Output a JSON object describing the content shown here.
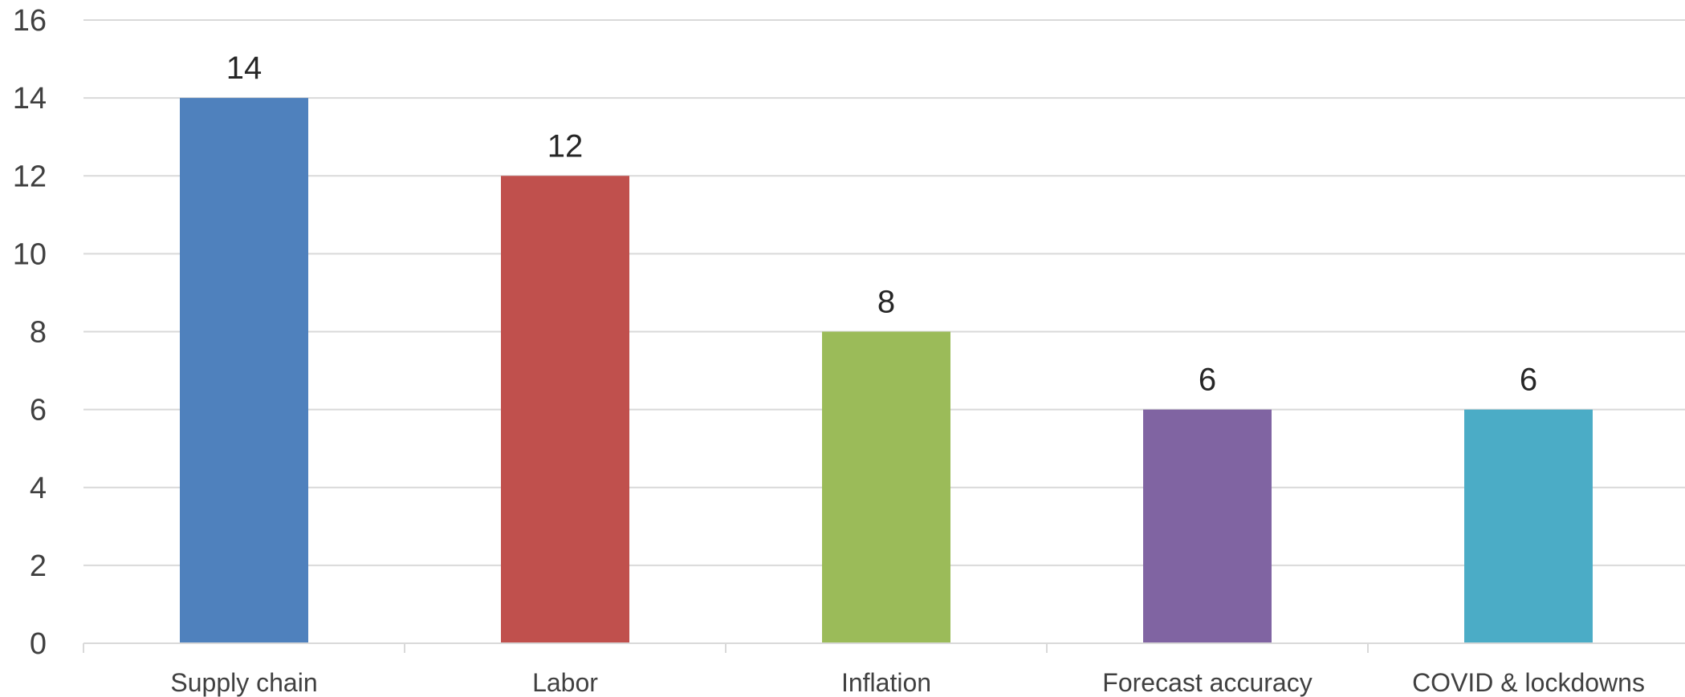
{
  "chart_data": {
    "type": "bar",
    "categories": [
      "Supply chain",
      "Labor",
      "Inflation",
      "Forecast accuracy",
      "COVID & lockdowns"
    ],
    "values": [
      14,
      12,
      8,
      6,
      6
    ],
    "colors": [
      "#4f81bd",
      "#c0504d",
      "#9bbb59",
      "#8064a2",
      "#4bacc6"
    ],
    "ylim": [
      0,
      16
    ],
    "yticks": [
      0,
      2,
      4,
      6,
      8,
      10,
      12,
      14,
      16
    ],
    "grid": true,
    "legend": "none"
  }
}
